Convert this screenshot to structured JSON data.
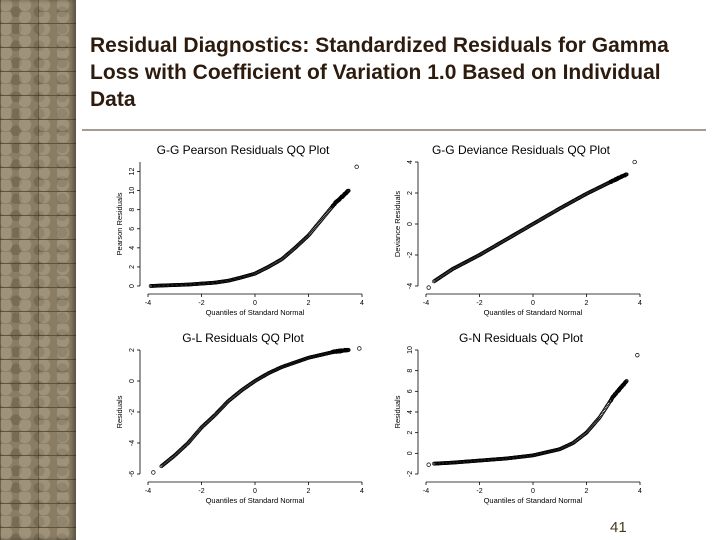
{
  "title": "Residual Diagnostics: Standardized Residuals for Gamma Loss with Coefficient of Variation 1.0 Based on Individual Data",
  "page_number": "41",
  "colors": {
    "title": "#2d1b0e",
    "stone": "#8a7d64",
    "points": "#000000"
  },
  "chart_data": [
    {
      "type": "scatter",
      "title": "G-G Pearson Residuals QQ Plot",
      "xlabel": "Quantiles of Standard Normal",
      "ylabel": "Pearson Residuals",
      "xlim": [
        -4,
        4
      ],
      "ylim": [
        0,
        13
      ],
      "xticks": [
        "-4",
        "-2",
        "0",
        "2",
        "4"
      ],
      "yticks": [
        "0",
        "2",
        "4",
        "6",
        "8",
        "10",
        "12"
      ],
      "curve": "pearson",
      "x": [
        -3.9,
        -3.5,
        -3.0,
        -2.5,
        -2.0,
        -1.5,
        -1.0,
        -0.5,
        0.0,
        0.5,
        1.0,
        1.5,
        2.0,
        2.5,
        3.0,
        3.5
      ],
      "y": [
        0.0,
        0.05,
        0.1,
        0.15,
        0.25,
        0.35,
        0.55,
        0.9,
        1.3,
        2.0,
        2.8,
        4.0,
        5.3,
        7.0,
        8.7,
        10.0
      ],
      "outliers": [
        {
          "x": 3.8,
          "y": 12.5
        }
      ]
    },
    {
      "type": "scatter",
      "title": "G-G Deviance Residuals QQ Plot",
      "xlabel": "Quantiles of Standard Normal",
      "ylabel": "Deviance Residuals",
      "xlim": [
        -4,
        4
      ],
      "ylim": [
        -4,
        4
      ],
      "xticks": [
        "-4",
        "-2",
        "0",
        "2",
        "4"
      ],
      "yticks": [
        "-4",
        "-2",
        "0",
        "2",
        "4"
      ],
      "curve": "deviance",
      "x": [
        -3.7,
        -3.0,
        -2.0,
        -1.0,
        0.0,
        1.0,
        2.0,
        3.0,
        3.5
      ],
      "y": [
        -3.7,
        -2.9,
        -2.0,
        -1.0,
        0.0,
        1.0,
        1.95,
        2.8,
        3.2
      ],
      "outliers": [
        {
          "x": -3.9,
          "y": -4.1
        },
        {
          "x": 3.8,
          "y": 4.0
        }
      ]
    },
    {
      "type": "scatter",
      "title": "G-L Residuals QQ Plot",
      "xlabel": "Quantiles of Standard Normal",
      "ylabel": "Residuals",
      "xlim": [
        -4,
        4
      ],
      "ylim": [
        -6,
        2
      ],
      "xticks": [
        "-4",
        "-2",
        "0",
        "2",
        "4"
      ],
      "yticks": [
        "-6",
        "-4",
        "-2",
        "0",
        "2"
      ],
      "curve": "gl",
      "x": [
        -3.5,
        -3.0,
        -2.5,
        -2.0,
        -1.5,
        -1.0,
        -0.5,
        0.0,
        0.5,
        1.0,
        1.5,
        2.0,
        2.5,
        3.0,
        3.5
      ],
      "y": [
        -5.5,
        -4.8,
        -4.0,
        -3.0,
        -2.2,
        -1.3,
        -0.6,
        0.0,
        0.5,
        0.9,
        1.2,
        1.5,
        1.7,
        1.9,
        2.0
      ],
      "outliers": [
        {
          "x": -3.8,
          "y": -5.9
        },
        {
          "x": 3.9,
          "y": 2.1
        }
      ]
    },
    {
      "type": "scatter",
      "title": "G-N Residuals QQ Plot",
      "xlabel": "Quantiles of Standard Normal",
      "ylabel": "Residuals",
      "xlim": [
        -4,
        4
      ],
      "ylim": [
        -2,
        10
      ],
      "xticks": [
        "-4",
        "-2",
        "0",
        "2",
        "4"
      ],
      "yticks": [
        "-2",
        "0",
        "2",
        "4",
        "6",
        "8",
        "10"
      ],
      "curve": "gn",
      "x": [
        -3.7,
        -3.0,
        -2.0,
        -1.0,
        0.0,
        1.0,
        1.5,
        2.0,
        2.5,
        3.0,
        3.5
      ],
      "y": [
        -1.0,
        -0.9,
        -0.7,
        -0.5,
        -0.2,
        0.4,
        1.0,
        2.0,
        3.5,
        5.5,
        7.0
      ],
      "outliers": [
        {
          "x": -3.9,
          "y": -1.1
        },
        {
          "x": 3.9,
          "y": 9.5
        }
      ]
    }
  ]
}
